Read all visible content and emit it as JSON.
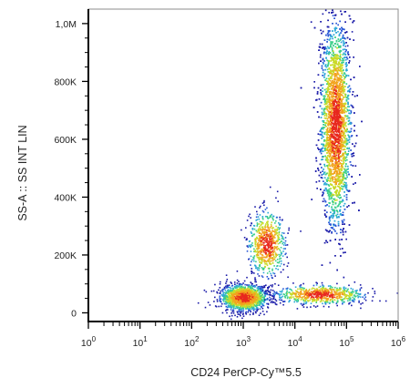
{
  "chart_data": {
    "type": "scatter",
    "subtype": "flow-cytometry density dot plot",
    "xlabel": "CD24 PerCP-Cy™5.5",
    "ylabel": "SS-A :: SS INT LIN",
    "x_scale": "log",
    "xlim": [
      1,
      1000000
    ],
    "ylim": [
      -30000,
      1050000
    ],
    "x_ticks": [
      {
        "base": "10",
        "exp": "0",
        "value": 1
      },
      {
        "base": "10",
        "exp": "1",
        "value": 10
      },
      {
        "base": "10",
        "exp": "2",
        "value": 100
      },
      {
        "base": "10",
        "exp": "3",
        "value": 1000
      },
      {
        "base": "10",
        "exp": "4",
        "value": 10000
      },
      {
        "base": "10",
        "exp": "5",
        "value": 100000
      },
      {
        "base": "10",
        "exp": "6",
        "value": 1000000
      }
    ],
    "y_ticks": [
      {
        "label": "0",
        "value": 0
      },
      {
        "label": "200K",
        "value": 200000
      },
      {
        "label": "400K",
        "value": 400000
      },
      {
        "label": "600K",
        "value": 600000
      },
      {
        "label": "800K",
        "value": 800000
      },
      {
        "label": "1,0M",
        "value": 1000000
      }
    ],
    "colormap": [
      "#1a1aa8",
      "#2a58d6",
      "#2fa8d8",
      "#3ccf8a",
      "#c8dc2a",
      "#f2a41e",
      "#e8281e"
    ],
    "grid": false,
    "populations": [
      {
        "center_x": 1000,
        "center_y": 55000,
        "spread_log_x": 0.22,
        "spread_y": 22000,
        "events": 1600
      },
      {
        "center_x": 2800,
        "center_y": 240000,
        "spread_log_x": 0.17,
        "spread_y": 55000,
        "events": 700
      },
      {
        "center_x": 60000,
        "center_y": 650000,
        "spread_log_x": 0.14,
        "spread_y": 170000,
        "events": 5000
      },
      {
        "center_x": 30000,
        "center_y": 65000,
        "spread_log_x": 0.42,
        "spread_y": 16000,
        "events": 700
      }
    ]
  }
}
